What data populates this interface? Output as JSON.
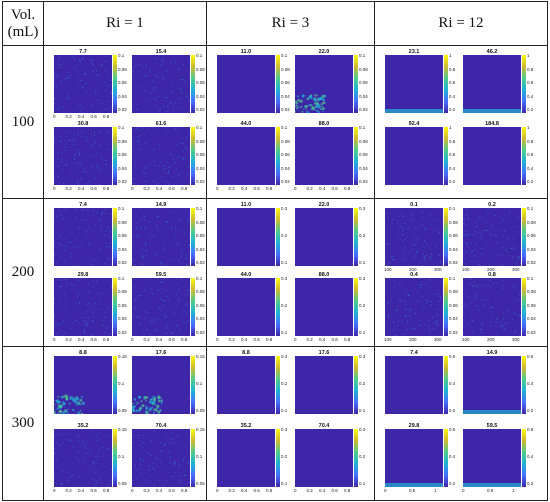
{
  "table": {
    "header_vol": "Vol.",
    "header_unit": "(mL)",
    "columns": [
      "Ri = 1",
      "Ri = 3",
      "Ri = 12"
    ],
    "rows": [
      {
        "label": "100",
        "groups": [
          {
            "panels": [
              {
                "title": "7.7",
                "cbar": [
                  "0.1",
                  "0.08",
                  "0.06",
                  "0.04",
                  "0.02"
                ],
                "xticks": [
                  "0",
                  "0.2",
                  "0.4",
                  "0.6",
                  "0.8"
                ],
                "pattern": "speckle"
              },
              {
                "title": "15.4",
                "cbar": [
                  "0.1",
                  "0.08",
                  "0.06",
                  "0.04",
                  "0.02"
                ],
                "xticks": [],
                "pattern": "speckle"
              },
              {
                "title": "30.8",
                "cbar": [
                  "0.1",
                  "0.08",
                  "0.06",
                  "0.04",
                  "0.02"
                ],
                "xticks": [
                  "0",
                  "0.2",
                  "0.4",
                  "0.6",
                  "0.8"
                ],
                "pattern": "speckle"
              },
              {
                "title": "61.6",
                "cbar": [
                  "0.1",
                  "0.08",
                  "0.06",
                  "0.04",
                  "0.02"
                ],
                "xticks": [
                  "0",
                  "0.2",
                  "0.4",
                  "0.6",
                  "0.8"
                ],
                "pattern": "speckle"
              }
            ]
          },
          {
            "panels": [
              {
                "title": "11.0",
                "cbar": [
                  "0.1",
                  "0.08",
                  "0.06",
                  "0.04",
                  "0.02"
                ],
                "xticks": [],
                "pattern": "flat"
              },
              {
                "title": "22.0",
                "cbar": [
                  "0.1",
                  "0.08",
                  "0.06",
                  "0.04",
                  "0.02"
                ],
                "xticks": [],
                "pattern": "plume"
              },
              {
                "title": "44.0",
                "cbar": [
                  "0.1",
                  "0.08",
                  "0.06",
                  "0.04",
                  "0.02"
                ],
                "xticks": [
                  "0",
                  "0.2",
                  "0.4",
                  "0.6",
                  "0.8"
                ],
                "pattern": "flat"
              },
              {
                "title": "88.0",
                "cbar": [
                  "0.1",
                  "0.08",
                  "0.06",
                  "0.04",
                  "0.02"
                ],
                "xticks": [
                  "0",
                  "0.2",
                  "0.4",
                  "0.6",
                  "0.8"
                ],
                "pattern": "flat"
              }
            ]
          },
          {
            "panels": [
              {
                "title": "23.1",
                "cbar": [
                  "1",
                  "0.8",
                  "0.6",
                  "0.4",
                  "0.2"
                ],
                "xticks": [],
                "pattern": "bottom"
              },
              {
                "title": "46.2",
                "cbar": [
                  "1",
                  "0.8",
                  "0.6",
                  "0.4",
                  "0.2"
                ],
                "xticks": [],
                "pattern": "bottom"
              },
              {
                "title": "92.4",
                "cbar": [
                  "1",
                  "0.8",
                  "0.6",
                  "0.4",
                  "0.2"
                ],
                "xticks": [],
                "pattern": "flat"
              },
              {
                "title": "184.8",
                "cbar": [
                  "1",
                  "0.8",
                  "0.6",
                  "0.4",
                  "0.2"
                ],
                "xticks": [],
                "pattern": "flat"
              }
            ]
          }
        ]
      },
      {
        "label": "200",
        "groups": [
          {
            "panels": [
              {
                "title": "7.4",
                "cbar": [
                  "0.1",
                  "0.08",
                  "0.06",
                  "0.04",
                  "0.02"
                ],
                "xticks": [],
                "pattern": "speckle"
              },
              {
                "title": "14.9",
                "cbar": [
                  "0.1",
                  "0.08",
                  "0.06",
                  "0.04",
                  "0.02"
                ],
                "xticks": [],
                "pattern": "speckle"
              },
              {
                "title": "29.8",
                "cbar": [
                  "0.1",
                  "0.08",
                  "0.06",
                  "0.04",
                  "0.02"
                ],
                "xticks": [
                  "0",
                  "0.2",
                  "0.4",
                  "0.6",
                  "0.8"
                ],
                "pattern": "speckle"
              },
              {
                "title": "59.5",
                "cbar": [
                  "0.1",
                  "0.08",
                  "0.06",
                  "0.04",
                  "0.02"
                ],
                "xticks": [
                  "0",
                  "0.2",
                  "0.4",
                  "0.6",
                  "0.8"
                ],
                "pattern": "speckle"
              }
            ]
          },
          {
            "panels": [
              {
                "title": "11.0",
                "cbar": [
                  "0.3",
                  "0.2",
                  "0.1"
                ],
                "xticks": [],
                "pattern": "flat"
              },
              {
                "title": "22.0",
                "cbar": [
                  "0.3",
                  "0.2",
                  "0.1"
                ],
                "xticks": [],
                "pattern": "flat"
              },
              {
                "title": "44.0",
                "cbar": [
                  "0.3",
                  "0.2",
                  "0.1"
                ],
                "xticks": [
                  "0",
                  "0.2",
                  "0.4",
                  "0.6",
                  "0.8"
                ],
                "pattern": "flat"
              },
              {
                "title": "88.0",
                "cbar": [
                  "0.3",
                  "0.2",
                  "0.1"
                ],
                "xticks": [
                  "0",
                  "0.2",
                  "0.4",
                  "0.6",
                  "0.8"
                ],
                "pattern": "flat"
              }
            ]
          },
          {
            "panels": [
              {
                "title": "0.1",
                "cbar": [
                  "0.1",
                  "0.08",
                  "0.06",
                  "0.04",
                  "0.02"
                ],
                "xticks": [
                  "100",
                  "200",
                  "300"
                ],
                "pattern": "speckle"
              },
              {
                "title": "0.2",
                "cbar": [
                  "0.1",
                  "0.08",
                  "0.06",
                  "0.04",
                  "0.02"
                ],
                "xticks": [
                  "100",
                  "200",
                  "300"
                ],
                "pattern": "speckle"
              },
              {
                "title": "0.4",
                "cbar": [
                  "0.1",
                  "0.08",
                  "0.06",
                  "0.04",
                  "0.02"
                ],
                "xticks": [
                  "100",
                  "200",
                  "300"
                ],
                "pattern": "speckle"
              },
              {
                "title": "0.8",
                "cbar": [
                  "0.1",
                  "0.08",
                  "0.06",
                  "0.04",
                  "0.02"
                ],
                "xticks": [
                  "100",
                  "200",
                  "300"
                ],
                "pattern": "speckle"
              }
            ]
          }
        ]
      },
      {
        "label": "300",
        "groups": [
          {
            "panels": [
              {
                "title": "8.8",
                "cbar": [
                  "0.15",
                  "0.1",
                  "0.05"
                ],
                "xticks": [],
                "pattern": "plume"
              },
              {
                "title": "17.6",
                "cbar": [
                  "0.15",
                  "0.1",
                  "0.05"
                ],
                "xticks": [],
                "pattern": "plume"
              },
              {
                "title": "35.2",
                "cbar": [
                  "0.15",
                  "0.1",
                  "0.05"
                ],
                "xticks": [
                  "0",
                  "0.2",
                  "0.4",
                  "0.6",
                  "0.8"
                ],
                "pattern": "speckle"
              },
              {
                "title": "70.4",
                "cbar": [
                  "0.15",
                  "0.1",
                  "0.05"
                ],
                "xticks": [
                  "0",
                  "0.2",
                  "0.4",
                  "0.6",
                  "0.8"
                ],
                "pattern": "speckle"
              }
            ]
          },
          {
            "panels": [
              {
                "title": "8.8",
                "cbar": [
                  "0.3",
                  "0.2",
                  "0.1"
                ],
                "xticks": [],
                "pattern": "flat"
              },
              {
                "title": "17.6",
                "cbar": [
                  "0.3",
                  "0.2",
                  "0.1"
                ],
                "xticks": [],
                "pattern": "flat"
              },
              {
                "title": "35.2",
                "cbar": [
                  "0.3",
                  "0.2",
                  "0.1"
                ],
                "xticks": [
                  "0",
                  "0.2",
                  "0.4",
                  "0.6",
                  "0.8"
                ],
                "pattern": "flat"
              },
              {
                "title": "70.4",
                "cbar": [
                  "0.3",
                  "0.2",
                  "0.1"
                ],
                "xticks": [
                  "0",
                  "0.2",
                  "0.4",
                  "0.6",
                  "0.8"
                ],
                "pattern": "flat"
              }
            ]
          },
          {
            "panels": [
              {
                "title": "7.4",
                "cbar": [
                  "0.6",
                  "0.4",
                  "0.2"
                ],
                "xticks": [],
                "pattern": "flat"
              },
              {
                "title": "14.9",
                "cbar": [
                  "0.6",
                  "0.4",
                  "0.2"
                ],
                "xticks": [],
                "pattern": "bottom"
              },
              {
                "title": "29.8",
                "cbar": [
                  "0.6",
                  "0.4",
                  "0.2"
                ],
                "xticks": [
                  "0",
                  "0.5",
                  "1"
                ],
                "pattern": "bottom"
              },
              {
                "title": "59.5",
                "cbar": [
                  "0.6",
                  "0.4",
                  "0.2"
                ],
                "xticks": [
                  "0",
                  "0.5",
                  "1"
                ],
                "pattern": "bottom"
              }
            ]
          }
        ]
      }
    ]
  },
  "colors": {
    "field": "#3e26a8",
    "high": "#f9fb0e",
    "mid": "#1fb3d3"
  }
}
